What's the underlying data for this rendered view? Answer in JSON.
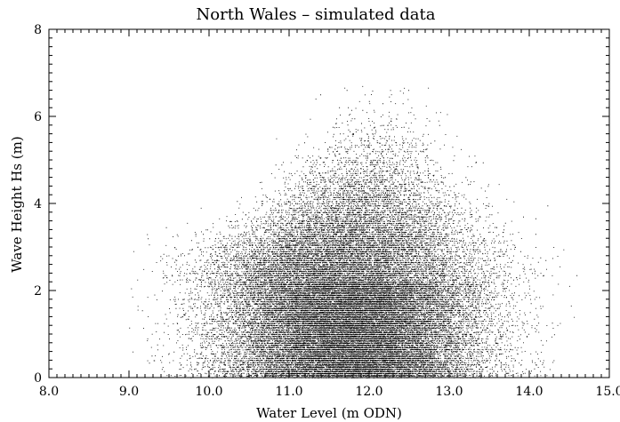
{
  "chart_data": {
    "type": "scatter",
    "title": "North Wales – simulated data",
    "xlabel": "Water Level (m ODN)",
    "ylabel": "Wave Height Hs (m)",
    "xlim": [
      8.0,
      15.0
    ],
    "ylim": [
      0,
      8
    ],
    "x_ticks": [
      "8.0",
      "9.0",
      "10.0",
      "11.0",
      "12.0",
      "13.0",
      "14.0",
      "15.0"
    ],
    "y_ticks": [
      "0",
      "2",
      "4",
      "6",
      "8"
    ],
    "marker_color": "#000000",
    "grid": false,
    "legend": "none",
    "distribution": {
      "point_count": 45000,
      "x_min": 9.0,
      "x_max": 14.6,
      "x_mode": 11.8,
      "y_min": 0,
      "y_max": 6.7,
      "y_dense_band_max": 2.2
    }
  }
}
